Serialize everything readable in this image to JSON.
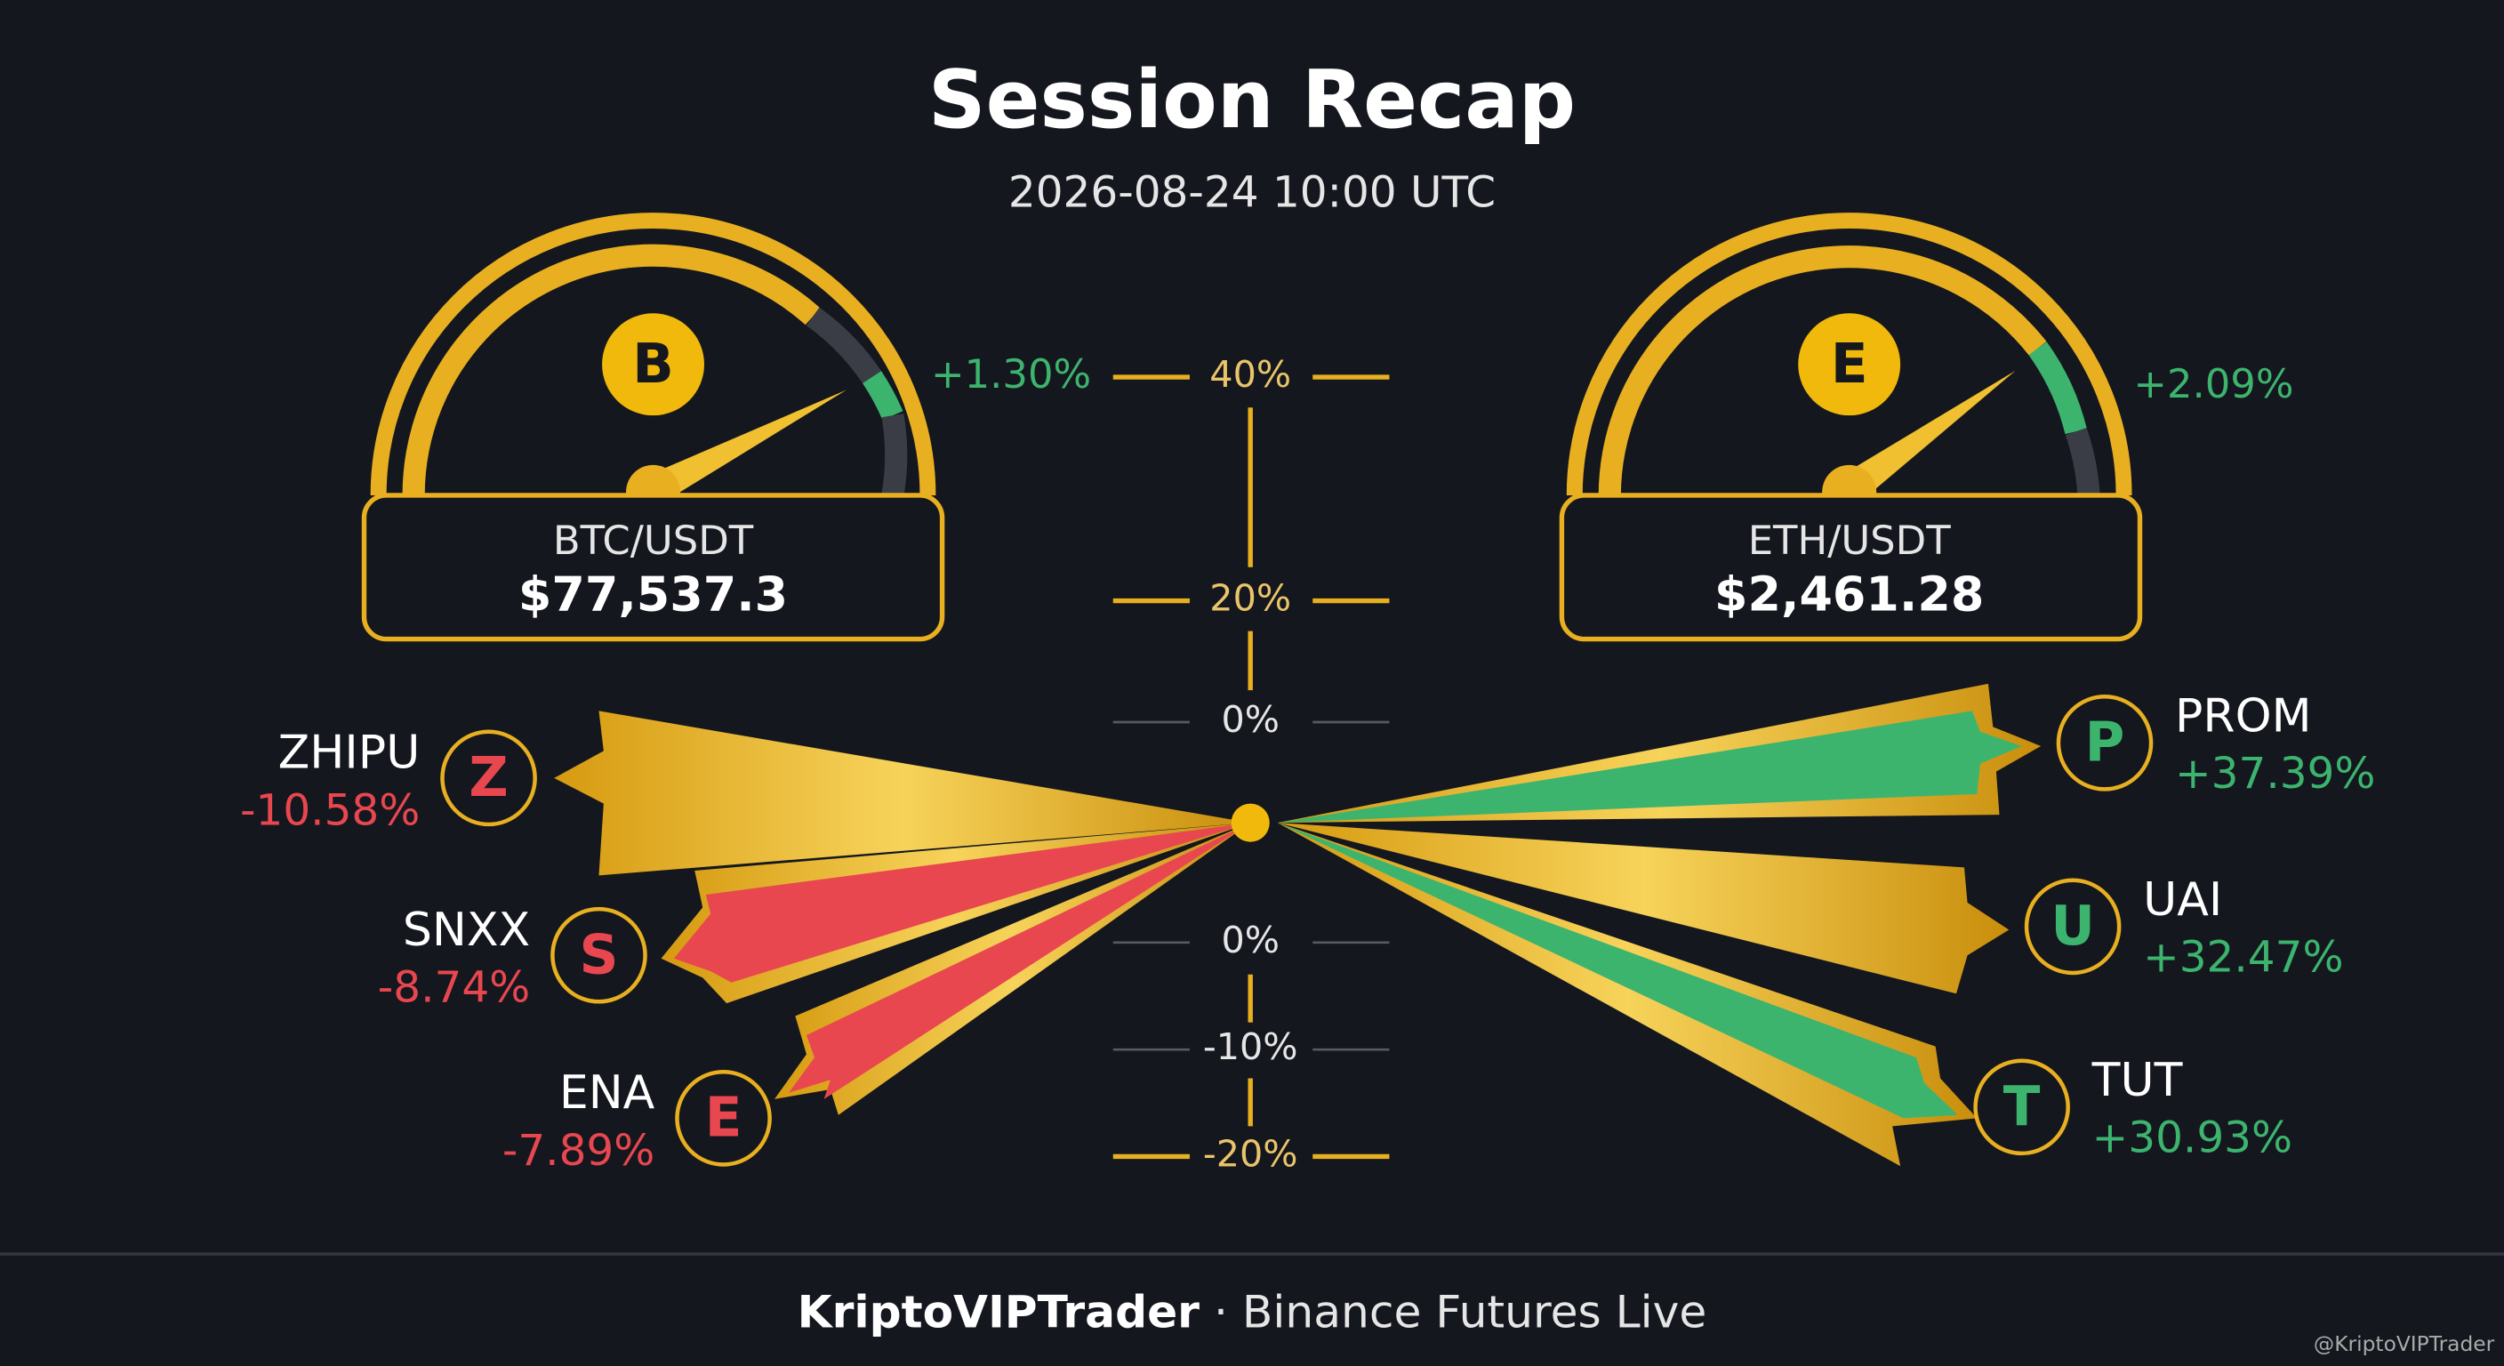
{
  "header": {
    "title": "Session Recap",
    "subtitle": "2026-08-24 10:00 UTC"
  },
  "gauges": [
    {
      "icon": "B",
      "pair": "BTC/USDT",
      "price": "$77,537.3",
      "change": "+1.30%"
    },
    {
      "icon": "E",
      "pair": "ETH/USDT",
      "price": "$2,461.28",
      "change": "+2.09%"
    }
  ],
  "scale": {
    "labels": [
      "40%",
      "20%",
      "0%",
      "0%",
      "-10%",
      "-20%"
    ]
  },
  "losers": [
    {
      "name": "ZHIPU",
      "icon": "Z",
      "change": "-10.58%"
    },
    {
      "name": "SNXX",
      "icon": "S",
      "change": "-8.74%"
    },
    {
      "name": "ENA",
      "icon": "E",
      "change": "-7.89%"
    }
  ],
  "gainers": [
    {
      "name": "PROM",
      "icon": "P",
      "change": "+37.39%"
    },
    {
      "name": "UAI",
      "icon": "U",
      "change": "+32.47%"
    },
    {
      "name": "TUT",
      "icon": "T",
      "change": "+30.93%"
    }
  ],
  "footer": {
    "brand": "KriptoVIPTrader",
    "text": "· Binance Futures Live"
  },
  "watermark": "@KriptoVIPTrader"
}
